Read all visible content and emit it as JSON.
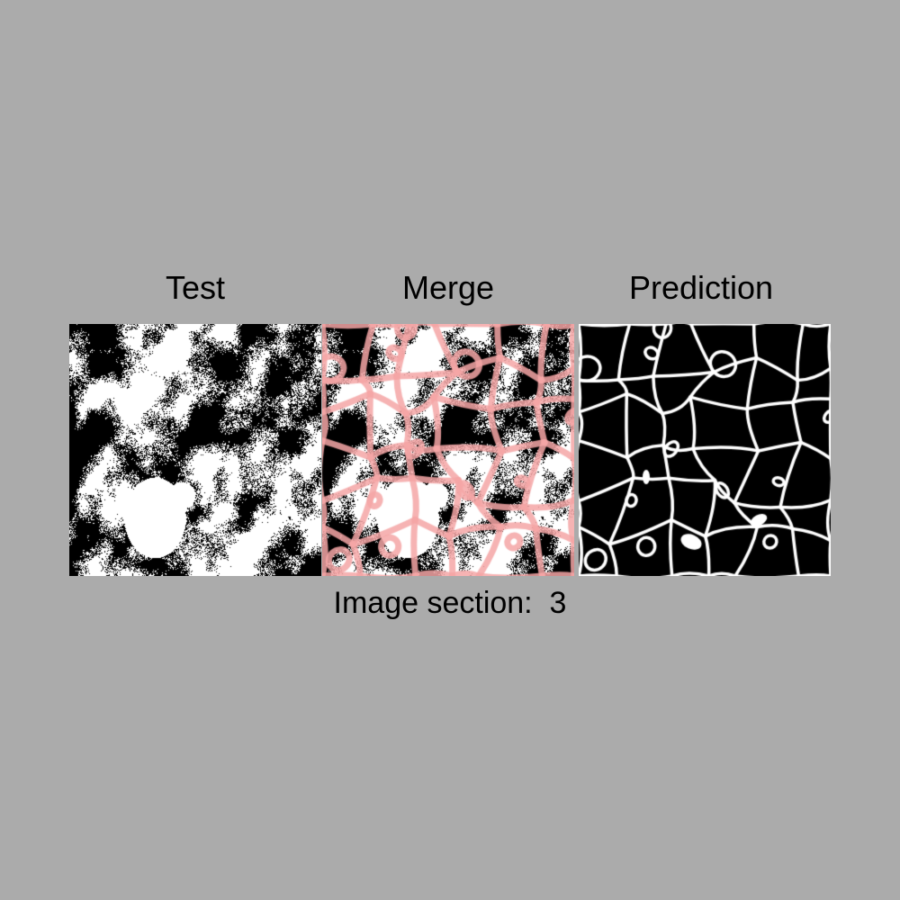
{
  "panels": [
    {
      "id": "test",
      "title": "Test"
    },
    {
      "id": "merge",
      "title": "Merge"
    },
    {
      "id": "prediction",
      "title": "Prediction"
    }
  ],
  "caption": {
    "label": "Image section:",
    "value": "3"
  },
  "colors": {
    "background": "#ababab",
    "binary_foreground": "#ffffff",
    "binary_background": "#000000",
    "overlay": "#f4a6a6"
  }
}
